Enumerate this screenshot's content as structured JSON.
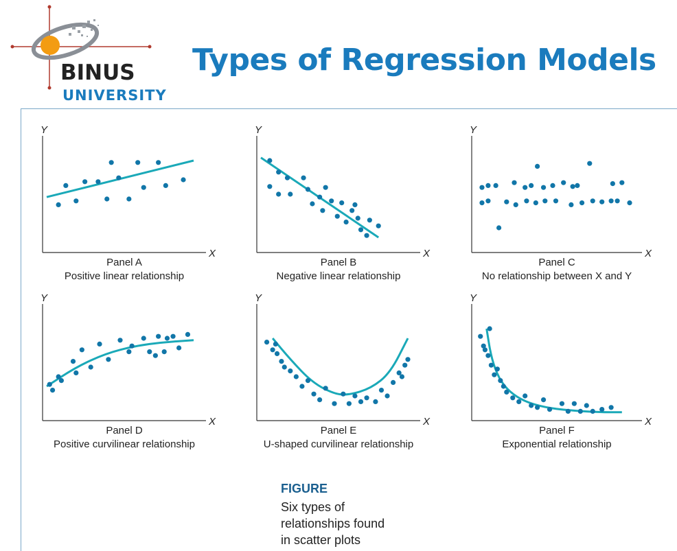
{
  "header": {
    "logo_line1": "BINUS",
    "logo_line2": "UNIVERSITY",
    "title": "Types of Regression Models"
  },
  "colors": {
    "accent": "#1a7bbd",
    "teal": "#1aa9b8",
    "dot": "#1176a8",
    "logo_orange": "#f39c12"
  },
  "axis_labels": {
    "x": "X",
    "y": "Y"
  },
  "chart_data": [
    {
      "type": "scatter",
      "title": "Panel A",
      "subtitle": "Positive linear relationship",
      "points": [
        [
          0.08,
          0.44
        ],
        [
          0.13,
          0.64
        ],
        [
          0.2,
          0.48
        ],
        [
          0.26,
          0.68
        ],
        [
          0.35,
          0.68
        ],
        [
          0.41,
          0.5
        ],
        [
          0.44,
          0.88
        ],
        [
          0.49,
          0.72
        ],
        [
          0.56,
          0.5
        ],
        [
          0.62,
          0.88
        ],
        [
          0.66,
          0.62
        ],
        [
          0.76,
          0.88
        ],
        [
          0.81,
          0.64
        ],
        [
          0.93,
          0.7
        ]
      ],
      "fit": {
        "kind": "line",
        "from": [
          0,
          0.52
        ],
        "to": [
          1,
          0.9
        ]
      }
    },
    {
      "type": "scatter",
      "title": "Panel B",
      "subtitle": "Negative linear relationship",
      "points": [
        [
          0.06,
          0.9
        ],
        [
          0.12,
          0.78
        ],
        [
          0.18,
          0.72
        ],
        [
          0.06,
          0.63
        ],
        [
          0.12,
          0.55
        ],
        [
          0.2,
          0.55
        ],
        [
          0.29,
          0.72
        ],
        [
          0.32,
          0.6
        ],
        [
          0.35,
          0.45
        ],
        [
          0.4,
          0.52
        ],
        [
          0.44,
          0.62
        ],
        [
          0.42,
          0.38
        ],
        [
          0.48,
          0.48
        ],
        [
          0.52,
          0.32
        ],
        [
          0.55,
          0.46
        ],
        [
          0.58,
          0.26
        ],
        [
          0.62,
          0.38
        ],
        [
          0.66,
          0.3
        ],
        [
          0.68,
          0.18
        ],
        [
          0.64,
          0.44
        ],
        [
          0.74,
          0.28
        ],
        [
          0.8,
          0.22
        ],
        [
          0.72,
          0.12
        ]
      ],
      "fit": {
        "kind": "line",
        "from": [
          0,
          0.93
        ],
        "to": [
          0.8,
          0.1
        ]
      }
    },
    {
      "type": "scatter",
      "title": "Panel C",
      "subtitle": "No relationship between X and Y",
      "points": [
        [
          0.04,
          0.62
        ],
        [
          0.08,
          0.64
        ],
        [
          0.13,
          0.64
        ],
        [
          0.25,
          0.67
        ],
        [
          0.32,
          0.62
        ],
        [
          0.36,
          0.64
        ],
        [
          0.44,
          0.62
        ],
        [
          0.5,
          0.64
        ],
        [
          0.57,
          0.67
        ],
        [
          0.63,
          0.63
        ],
        [
          0.66,
          0.64
        ],
        [
          0.89,
          0.66
        ],
        [
          0.95,
          0.67
        ],
        [
          0.04,
          0.46
        ],
        [
          0.08,
          0.48
        ],
        [
          0.2,
          0.47
        ],
        [
          0.26,
          0.44
        ],
        [
          0.33,
          0.48
        ],
        [
          0.39,
          0.46
        ],
        [
          0.45,
          0.48
        ],
        [
          0.52,
          0.48
        ],
        [
          0.62,
          0.44
        ],
        [
          0.69,
          0.46
        ],
        [
          0.76,
          0.48
        ],
        [
          0.82,
          0.47
        ],
        [
          0.88,
          0.48
        ],
        [
          1.0,
          0.46
        ],
        [
          0.92,
          0.48
        ],
        [
          0.15,
          0.2
        ],
        [
          0.4,
          0.84
        ],
        [
          0.74,
          0.87
        ]
      ],
      "fit": null
    },
    {
      "type": "scatter",
      "title": "Panel D",
      "subtitle": "Positive curvilinear relationship",
      "points": [
        [
          0.02,
          0.32
        ],
        [
          0.04,
          0.26
        ],
        [
          0.08,
          0.4
        ],
        [
          0.1,
          0.36
        ],
        [
          0.18,
          0.56
        ],
        [
          0.2,
          0.44
        ],
        [
          0.24,
          0.68
        ],
        [
          0.3,
          0.5
        ],
        [
          0.36,
          0.74
        ],
        [
          0.42,
          0.58
        ],
        [
          0.5,
          0.78
        ],
        [
          0.56,
          0.66
        ],
        [
          0.58,
          0.72
        ],
        [
          0.66,
          0.8
        ],
        [
          0.7,
          0.66
        ],
        [
          0.74,
          0.62
        ],
        [
          0.76,
          0.82
        ],
        [
          0.8,
          0.66
        ],
        [
          0.82,
          0.8
        ],
        [
          0.86,
          0.82
        ],
        [
          0.9,
          0.7
        ],
        [
          0.96,
          0.84
        ]
      ],
      "fit": {
        "kind": "curve",
        "points": [
          [
            0,
            0.3
          ],
          [
            0.2,
            0.5
          ],
          [
            0.4,
            0.64
          ],
          [
            0.6,
            0.72
          ],
          [
            0.8,
            0.76
          ],
          [
            1,
            0.78
          ]
        ]
      }
    },
    {
      "type": "scatter",
      "title": "Panel E",
      "subtitle": "U-shaped curvilinear relationship",
      "points": [
        [
          0.04,
          0.76
        ],
        [
          0.08,
          0.68
        ],
        [
          0.11,
          0.64
        ],
        [
          0.14,
          0.56
        ],
        [
          0.16,
          0.5
        ],
        [
          0.2,
          0.46
        ],
        [
          0.24,
          0.4
        ],
        [
          0.28,
          0.3
        ],
        [
          0.32,
          0.36
        ],
        [
          0.36,
          0.22
        ],
        [
          0.4,
          0.16
        ],
        [
          0.44,
          0.28
        ],
        [
          0.5,
          0.12
        ],
        [
          0.56,
          0.22
        ],
        [
          0.6,
          0.12
        ],
        [
          0.64,
          0.2
        ],
        [
          0.68,
          0.14
        ],
        [
          0.72,
          0.18
        ],
        [
          0.78,
          0.14
        ],
        [
          0.82,
          0.26
        ],
        [
          0.86,
          0.2
        ],
        [
          0.9,
          0.34
        ],
        [
          0.94,
          0.44
        ],
        [
          0.96,
          0.4
        ],
        [
          0.98,
          0.52
        ],
        [
          1.0,
          0.58
        ],
        [
          0.1,
          0.74
        ]
      ],
      "fit": {
        "kind": "curve",
        "points": [
          [
            0.08,
            0.8
          ],
          [
            0.2,
            0.58
          ],
          [
            0.35,
            0.34
          ],
          [
            0.5,
            0.22
          ],
          [
            0.6,
            0.21
          ],
          [
            0.75,
            0.28
          ],
          [
            0.88,
            0.44
          ],
          [
            1.0,
            0.8
          ]
        ]
      }
    },
    {
      "type": "scatter",
      "title": "Panel F",
      "subtitle": "Exponential relationship",
      "points": [
        [
          0.03,
          0.82
        ],
        [
          0.05,
          0.72
        ],
        [
          0.06,
          0.68
        ],
        [
          0.08,
          0.62
        ],
        [
          0.09,
          0.9
        ],
        [
          0.1,
          0.52
        ],
        [
          0.12,
          0.42
        ],
        [
          0.16,
          0.36
        ],
        [
          0.18,
          0.3
        ],
        [
          0.2,
          0.24
        ],
        [
          0.24,
          0.18
        ],
        [
          0.28,
          0.14
        ],
        [
          0.32,
          0.2
        ],
        [
          0.36,
          0.1
        ],
        [
          0.4,
          0.08
        ],
        [
          0.44,
          0.16
        ],
        [
          0.48,
          0.06
        ],
        [
          0.56,
          0.12
        ],
        [
          0.6,
          0.04
        ],
        [
          0.64,
          0.12
        ],
        [
          0.68,
          0.04
        ],
        [
          0.72,
          0.1
        ],
        [
          0.76,
          0.04
        ],
        [
          0.82,
          0.06
        ],
        [
          0.88,
          0.08
        ],
        [
          0.14,
          0.48
        ]
      ],
      "fit": {
        "kind": "curve",
        "points": [
          [
            0.07,
            0.9
          ],
          [
            0.1,
            0.6
          ],
          [
            0.15,
            0.38
          ],
          [
            0.22,
            0.24
          ],
          [
            0.32,
            0.14
          ],
          [
            0.45,
            0.08
          ],
          [
            0.6,
            0.05
          ],
          [
            0.8,
            0.03
          ],
          [
            0.95,
            0.03
          ]
        ]
      }
    }
  ],
  "caption": {
    "label": "FIGURE",
    "text_lines": [
      "Six types of",
      "relationships found",
      "in scatter plots"
    ]
  }
}
